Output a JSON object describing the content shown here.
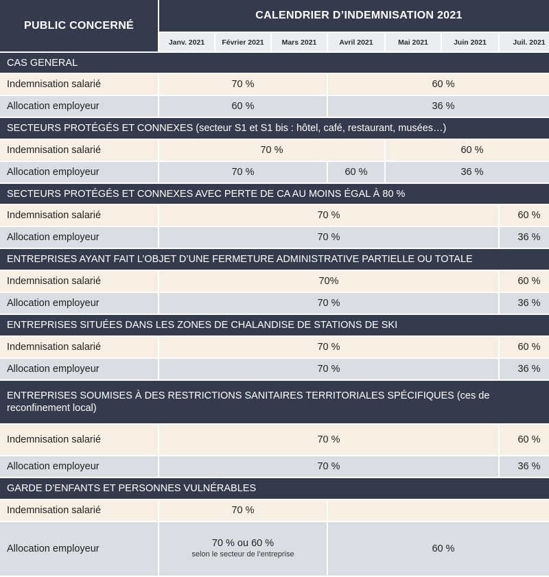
{
  "header": {
    "public_label": "PUBLIC CONCERNÉ",
    "calendar_title": "CALENDRIER D’INDEMNISATION 2021",
    "months": [
      "Janv. 2021",
      "Février 2021",
      "Mars 2021",
      "Avril 2021",
      "Mai 2021",
      "Juin 2021",
      "Juil. 2021"
    ]
  },
  "sections": [
    {
      "title": "CAS GENERAL",
      "rows": [
        {
          "label": "Indemnisation salarié",
          "values": [
            "70 %",
            "60 %"
          ]
        },
        {
          "label": "Allocation employeur",
          "values": [
            "60 %",
            "36 %"
          ]
        }
      ]
    },
    {
      "title": "SECTEURS PROTÉGÉS ET CONNEXES (secteur S1 et S1 bis : hôtel, café, restaurant, musées…)",
      "rows": [
        {
          "label": "Indemnisation salarié",
          "values": [
            "70 %",
            "60 %"
          ]
        },
        {
          "label": "Allocation employeur",
          "values": [
            "70 %",
            "60 %",
            "36 %"
          ]
        }
      ]
    },
    {
      "title": "SECTEURS PROTÉGÉS ET CONNEXES AVEC PERTE DE CA AU MOINS ÉGAL À 80 %",
      "rows": [
        {
          "label": "Indemnisation salarié",
          "values": [
            "70 %",
            "60 %"
          ]
        },
        {
          "label": "Allocation employeur",
          "values": [
            "70 %",
            "36 %"
          ]
        }
      ]
    },
    {
      "title": "ENTREPRISES AYANT FAIT L’OBJET D’UNE FERMETURE ADMINISTRATIVE PARTIELLE OU TOTALE",
      "rows": [
        {
          "label": "Indemnisation salarié",
          "values": [
            "70%",
            "60 %"
          ]
        },
        {
          "label": "Allocation employeur",
          "values": [
            "70 %",
            "36 %"
          ]
        }
      ]
    },
    {
      "title": "ENTREPRISES SITUÉES DANS LES ZONES DE CHALANDISE DE STATIONS DE SKI",
      "rows": [
        {
          "label": "Indemnisation salarié",
          "values": [
            "70 %",
            "60 %"
          ]
        },
        {
          "label": "Allocation employeur",
          "values": [
            "70 %",
            "36 %"
          ]
        }
      ]
    },
    {
      "title": "ENTREPRISES SOUMISES À DES RESTRICTIONS SANITAIRES TERRITORIALES SPÉCIFIQUES (ces de reconfinement local)",
      "rows": [
        {
          "label": "Indemnisation salarié",
          "values": [
            "70 %",
            "60 %"
          ]
        },
        {
          "label": "Allocation employeur",
          "values": [
            "70 %",
            "36 %"
          ]
        }
      ]
    },
    {
      "title": "GARDE D’ENFANTS ET PERSONNES VULNÉRABLES",
      "rows": [
        {
          "label": "Indemnisation salarié",
          "values": [
            "70 %",
            ""
          ]
        },
        {
          "label": "Allocation employeur",
          "values": [
            "70 % ou 60 %",
            "60 %"
          ],
          "note": "selon le secteur de l’entreprise"
        }
      ]
    }
  ]
}
